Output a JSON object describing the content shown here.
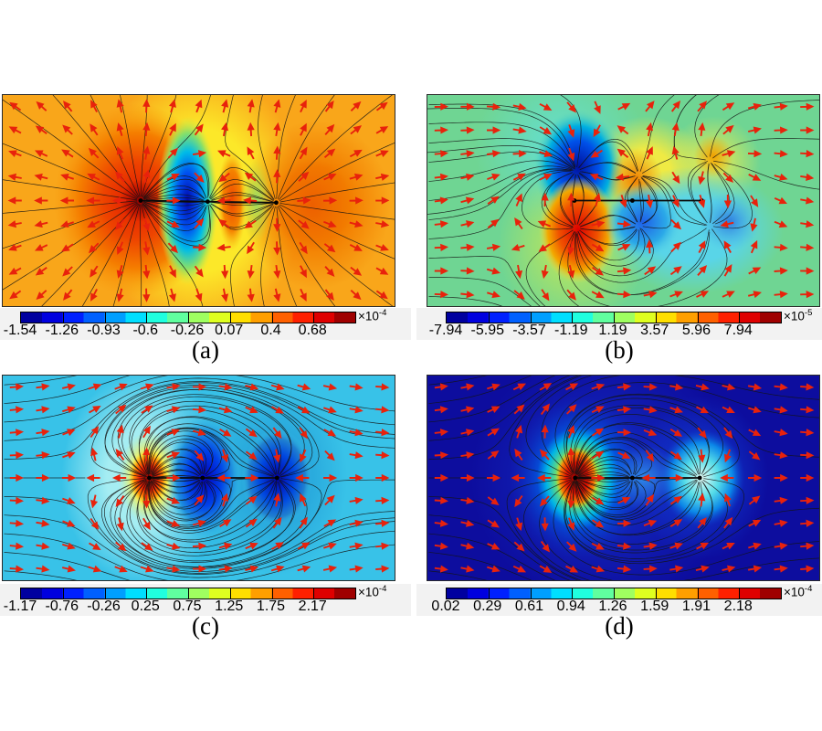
{
  "meta": {
    "page_background": "#ffffff",
    "band_background": "#f2f2f2",
    "streamline_color": "#141414",
    "arrow_color": "#e8220c",
    "marker_color": "#000000",
    "colormap": "jet",
    "colorbar_segments": 16
  },
  "chart_data": [
    {
      "type": "heatmap",
      "label": "(a)",
      "colormap": "jet",
      "description": "contour field with streamlines and red quiver arrows, three singular points on horizontal midline",
      "colorbar": {
        "ticks": [
          "-1.54",
          "-1.26",
          "-0.93",
          "-0.6",
          "-0.26",
          "0.07",
          "0.4",
          "0.68"
        ],
        "exp_base": "×10",
        "exp_power": "-4",
        "range": [
          -0.000154,
          6.8e-05
        ]
      },
      "background_color": "#f9a61a",
      "singular_points": [
        [
          0.352,
          0.5
        ],
        [
          0.523,
          0.505
        ],
        [
          0.698,
          0.51
        ]
      ],
      "field_model": {
        "uniform": {
          "x": 0,
          "y": 0
        },
        "seeds_per_charge": 26,
        "charges": [
          {
            "x": 0.352,
            "y": 0.5,
            "q": 1
          },
          {
            "x": 0.523,
            "y": 0.505,
            "q": -0.32
          },
          {
            "x": 0.698,
            "y": 0.51,
            "q": 0.55
          }
        ]
      },
      "blobs": [
        {
          "cx": 0.5,
          "cy": 0.5,
          "rx": 0.27,
          "ry": 0.62,
          "stops": [
            [
              "#fce829",
              0
            ],
            [
              "#fce829",
              0.55
            ],
            [
              "rgba(252,232,41,0)",
              1
            ]
          ]
        },
        {
          "cx": 0.8,
          "cy": 0.52,
          "rx": 0.19,
          "ry": 0.4,
          "stops": [
            [
              "#f27d00",
              0
            ],
            [
              "#f27d00",
              0.45
            ],
            [
              "rgba(242,125,0,0)",
              1
            ]
          ]
        },
        {
          "cx": 0.79,
          "cy": 0.52,
          "rx": 0.1,
          "ry": 0.22,
          "stops": [
            [
              "#ed5f00",
              0
            ],
            [
              "rgba(237,95,0,0)",
              1
            ]
          ]
        },
        {
          "cx": 0.34,
          "cy": 0.5,
          "rx": 0.21,
          "ry": 0.46,
          "stops": [
            [
              "#e01800",
              0
            ],
            [
              "#ee4400",
              0.4
            ],
            [
              "#f57e00",
              0.7
            ],
            [
              "rgba(248,150,10,0)",
              1
            ]
          ]
        },
        {
          "cx": 0.35,
          "cy": 0.5,
          "rx": 0.05,
          "ry": 0.1,
          "stops": [
            [
              "#900000",
              0
            ],
            [
              "rgba(144,0,0,0)",
              1
            ]
          ]
        },
        {
          "cx": 0.472,
          "cy": 0.5,
          "rx": 0.078,
          "ry": 0.4,
          "stops": [
            [
              "#0008b0",
              0
            ],
            [
              "#0050f0",
              0.33
            ],
            [
              "#00bce8",
              0.58
            ],
            [
              "#86e06a",
              0.8
            ],
            [
              "rgba(220,235,60,0)",
              1
            ]
          ]
        },
        {
          "cx": 0.585,
          "cy": 0.5,
          "rx": 0.038,
          "ry": 0.24,
          "stops": [
            [
              "#ee4800",
              0
            ],
            [
              "#f58300",
              0.6
            ],
            [
              "rgba(250,190,20,0)",
              1
            ]
          ]
        },
        {
          "cx": 0.648,
          "cy": 0.5,
          "rx": 0.04,
          "ry": 0.2,
          "stops": [
            [
              "#9ade62",
              0
            ],
            [
              "rgba(180,225,80,0)",
              1
            ]
          ]
        }
      ]
    },
    {
      "type": "heatmap",
      "label": "(b)",
      "colormap": "jet",
      "description": "contour field with vertical dipole-like streamline loops at three midline points",
      "colorbar": {
        "ticks": [
          "-7.94",
          "-5.95",
          "-3.57",
          "-1.19",
          "1.19",
          "3.57",
          "5.96",
          "7.94"
        ],
        "exp_base": "×10",
        "exp_power": "-5",
        "range": [
          -7.94e-05,
          7.94e-05
        ]
      },
      "background_color": "#6fd593",
      "singular_points": [
        [
          0.375,
          0.5
        ],
        [
          0.523,
          0.5
        ],
        [
          0.7,
          0.5
        ]
      ],
      "field_model": {
        "uniform": {
          "x": 2,
          "y": 0
        },
        "seeds_per_charge": 13,
        "charges": [
          {
            "x": 0.38,
            "y": 0.63,
            "q": 1
          },
          {
            "x": 0.38,
            "y": 0.36,
            "q": -0.85
          },
          {
            "x": 0.54,
            "y": 0.38,
            "q": 0.45
          },
          {
            "x": 0.54,
            "y": 0.62,
            "q": -0.45
          },
          {
            "x": 0.72,
            "y": 0.31,
            "q": 0.4
          },
          {
            "x": 0.72,
            "y": 0.62,
            "q": -0.35
          }
        ]
      },
      "blobs": [
        {
          "cx": 0.34,
          "cy": 0.25,
          "rx": 0.22,
          "ry": 0.38,
          "stops": [
            [
              "#63dfd4",
              0
            ],
            [
              "rgba(99,223,212,0)",
              1
            ]
          ]
        },
        {
          "cx": 0.37,
          "cy": 0.72,
          "rx": 0.19,
          "ry": 0.38,
          "stops": [
            [
              "#c8e852",
              0
            ],
            [
              "rgba(200,232,82,0)",
              1
            ]
          ]
        },
        {
          "cx": 0.56,
          "cy": 0.36,
          "rx": 0.15,
          "ry": 0.26,
          "stops": [
            [
              "#efea44",
              0
            ],
            [
              "#efea44",
              0.4
            ],
            [
              "rgba(239,234,68,0)",
              1
            ]
          ]
        },
        {
          "cx": 0.73,
          "cy": 0.32,
          "rx": 0.12,
          "ry": 0.22,
          "stops": [
            [
              "#f0ec4c",
              0
            ],
            [
              "rgba(240,236,76,0)",
              1
            ]
          ]
        },
        {
          "cx": 0.68,
          "cy": 0.64,
          "rx": 0.23,
          "ry": 0.3,
          "stops": [
            [
              "#59d5e8",
              0
            ],
            [
              "#59d5e8",
              0.5
            ],
            [
              "rgba(89,213,232,0)",
              1
            ]
          ]
        },
        {
          "cx": 0.385,
          "cy": 0.34,
          "rx": 0.115,
          "ry": 0.27,
          "stops": [
            [
              "#0010a0",
              0
            ],
            [
              "#0050e8",
              0.45
            ],
            [
              "#00b0e0",
              0.72
            ],
            [
              "rgba(99,216,180,0)",
              1
            ]
          ]
        },
        {
          "cx": 0.385,
          "cy": 0.64,
          "rx": 0.1,
          "ry": 0.25,
          "stops": [
            [
              "#dd0000",
              0
            ],
            [
              "#f05200",
              0.5
            ],
            [
              "#f2a800",
              0.78
            ],
            [
              "rgba(240,220,70,0)",
              1
            ]
          ]
        },
        {
          "cx": 0.53,
          "cy": 0.4,
          "rx": 0.07,
          "ry": 0.15,
          "stops": [
            [
              "#f08000",
              0
            ],
            [
              "rgba(240,128,0,0)",
              1
            ]
          ]
        },
        {
          "cx": 0.73,
          "cy": 0.29,
          "rx": 0.05,
          "ry": 0.1,
          "stops": [
            [
              "#f0a000",
              0
            ],
            [
              "rgba(240,160,0,0)",
              1
            ]
          ]
        },
        {
          "cx": 0.55,
          "cy": 0.6,
          "rx": 0.1,
          "ry": 0.18,
          "stops": [
            [
              "#1e5fe8",
              0
            ],
            [
              "#2ba9e8",
              0.6
            ],
            [
              "rgba(89,213,232,0)",
              1
            ]
          ]
        },
        {
          "cx": 0.77,
          "cy": 0.6,
          "rx": 0.08,
          "ry": 0.14,
          "stops": [
            [
              "#2e7be0",
              0
            ],
            [
              "rgba(70,180,230,0)",
              1
            ]
          ]
        }
      ]
    },
    {
      "type": "heatmap",
      "label": "(c)",
      "colormap": "jet",
      "description": "contour field: hot source at left, two cold sinks right, streamlines and quiver arrows",
      "colorbar": {
        "ticks": [
          "-1.17",
          "-0.76",
          "-0.26",
          "0.25",
          "0.75",
          "1.25",
          "1.75",
          "2.17"
        ],
        "exp_base": "×10",
        "exp_power": "-4",
        "range": [
          -0.000117,
          0.000217
        ]
      },
      "background_color": "#38c2e8",
      "singular_points": [
        [
          0.374,
          0.5
        ],
        [
          0.51,
          0.5
        ],
        [
          0.7,
          0.5
        ]
      ],
      "field_model": {
        "uniform": {
          "x": 3,
          "y": 0
        },
        "seeds_per_charge": 26,
        "charges": [
          {
            "x": 0.374,
            "y": 0.5,
            "q": 1
          },
          {
            "x": 0.51,
            "y": 0.5,
            "q": -0.5
          },
          {
            "x": 0.7,
            "y": 0.5,
            "q": -0.45
          }
        ]
      },
      "blobs": [
        {
          "cx": 0.36,
          "cy": 0.5,
          "rx": 0.21,
          "ry": 0.52,
          "stops": [
            [
              "#a5edf2",
              0
            ],
            [
              "#a5edf2",
              0.45
            ],
            [
              "rgba(165,237,242,0)",
              1
            ]
          ]
        },
        {
          "cx": 0.52,
          "cy": 0.5,
          "rx": 0.15,
          "ry": 0.45,
          "stops": [
            [
              "#28abde",
              0
            ],
            [
              "rgba(40,171,222,0)",
              1
            ]
          ]
        },
        {
          "cx": 0.7,
          "cy": 0.5,
          "rx": 0.18,
          "ry": 0.48,
          "stops": [
            [
              "#28a8dc",
              0
            ],
            [
              "#28a8dc",
              0.45
            ],
            [
              "rgba(40,168,220,0)",
              1
            ]
          ]
        },
        {
          "cx": 0.375,
          "cy": 0.5,
          "rx": 0.08,
          "ry": 0.23,
          "stops": [
            [
              "#ffd800",
              0
            ],
            [
              "#f7f056",
              0.55
            ],
            [
              "rgba(200,240,160,0)",
              1
            ]
          ]
        },
        {
          "cx": 0.372,
          "cy": 0.5,
          "rx": 0.05,
          "ry": 0.135,
          "stops": [
            [
              "#930000",
              0
            ],
            [
              "#ec1c00",
              0.45
            ],
            [
              "rgba(255,120,0,0.95)",
              0.72
            ],
            [
              "rgba(255,200,0,0)",
              1
            ]
          ]
        },
        {
          "cx": 0.515,
          "cy": 0.5,
          "rx": 0.095,
          "ry": 0.3,
          "stops": [
            [
              "#0000be",
              0
            ],
            [
              "#0040e8",
              0.45
            ],
            [
              "#1e8ede",
              0.75
            ],
            [
              "rgba(56,194,232,0)",
              1
            ]
          ]
        },
        {
          "cx": 0.7,
          "cy": 0.5,
          "rx": 0.09,
          "ry": 0.24,
          "stops": [
            [
              "#0000aa",
              0
            ],
            [
              "#0048e0",
              0.5
            ],
            [
              "#2080d0",
              0.8
            ],
            [
              "rgba(56,194,232,0)",
              1
            ]
          ]
        }
      ]
    },
    {
      "type": "heatmap",
      "label": "(d)",
      "colormap": "jet",
      "description": "contour field on dark blue background with bright hotspot left and pale spot right",
      "colorbar": {
        "ticks": [
          "0.02",
          "0.29",
          "0.61",
          "0.94",
          "1.26",
          "1.59",
          "1.91",
          "2.18"
        ],
        "exp_base": "×10",
        "exp_power": "-4",
        "range": [
          2e-06,
          0.000218
        ]
      },
      "background_color": "#0d0d9e",
      "singular_points": [
        [
          0.377,
          0.5
        ],
        [
          0.523,
          0.5
        ],
        [
          0.695,
          0.5
        ]
      ],
      "field_model": {
        "uniform": {
          "x": 2.5,
          "y": 0
        },
        "seeds_per_charge": 24,
        "charges": [
          {
            "x": 0.377,
            "y": 0.5,
            "q": 1
          },
          {
            "x": 0.523,
            "y": 0.5,
            "q": -0.3
          },
          {
            "x": 0.695,
            "y": 0.5,
            "q": -0.4
          }
        ]
      },
      "blobs": [
        {
          "cx": 0.45,
          "cy": 0.5,
          "rx": 0.34,
          "ry": 0.62,
          "stops": [
            [
              "#1530c8",
              0
            ],
            [
              "rgba(21,48,200,0)",
              1
            ]
          ]
        },
        {
          "cx": 0.39,
          "cy": 0.5,
          "rx": 0.18,
          "ry": 0.4,
          "stops": [
            [
              "#00aae8",
              0
            ],
            [
              "#0064e8",
              0.5
            ],
            [
              "rgba(13,40,190,0)",
              1
            ]
          ]
        },
        {
          "cx": 0.385,
          "cy": 0.5,
          "rx": 0.105,
          "ry": 0.25,
          "stops": [
            [
              "#efe83c",
              0
            ],
            [
              "#7fe35e",
              0.5
            ],
            [
              "rgba(0,190,230,0.9)",
              0.78
            ],
            [
              "rgba(0,150,230,0)",
              1
            ]
          ]
        },
        {
          "cx": 0.382,
          "cy": 0.5,
          "rx": 0.055,
          "ry": 0.15,
          "stops": [
            [
              "#8f0000",
              0
            ],
            [
              "#de1000",
              0.5
            ],
            [
              "rgba(255,120,0,0.95)",
              0.8
            ],
            [
              "rgba(255,210,0,0)",
              1
            ]
          ]
        },
        {
          "cx": 0.7,
          "cy": 0.5,
          "rx": 0.17,
          "ry": 0.4,
          "stops": [
            [
              "#1040d8",
              0
            ],
            [
              "rgba(16,64,216,0)",
              1
            ]
          ]
        },
        {
          "cx": 0.7,
          "cy": 0.5,
          "rx": 0.11,
          "ry": 0.24,
          "stops": [
            [
              "#e6fdf5",
              0
            ],
            [
              "#55dce8",
              0.4
            ],
            [
              "#0b86e8",
              0.72
            ],
            [
              "rgba(13,60,200,0)",
              1
            ]
          ]
        },
        {
          "cx": 0.55,
          "cy": 0.5,
          "rx": 0.09,
          "ry": 0.16,
          "stops": [
            [
              "#2e86e8",
              0
            ],
            [
              "rgba(46,134,232,0)",
              1
            ]
          ]
        }
      ]
    }
  ]
}
